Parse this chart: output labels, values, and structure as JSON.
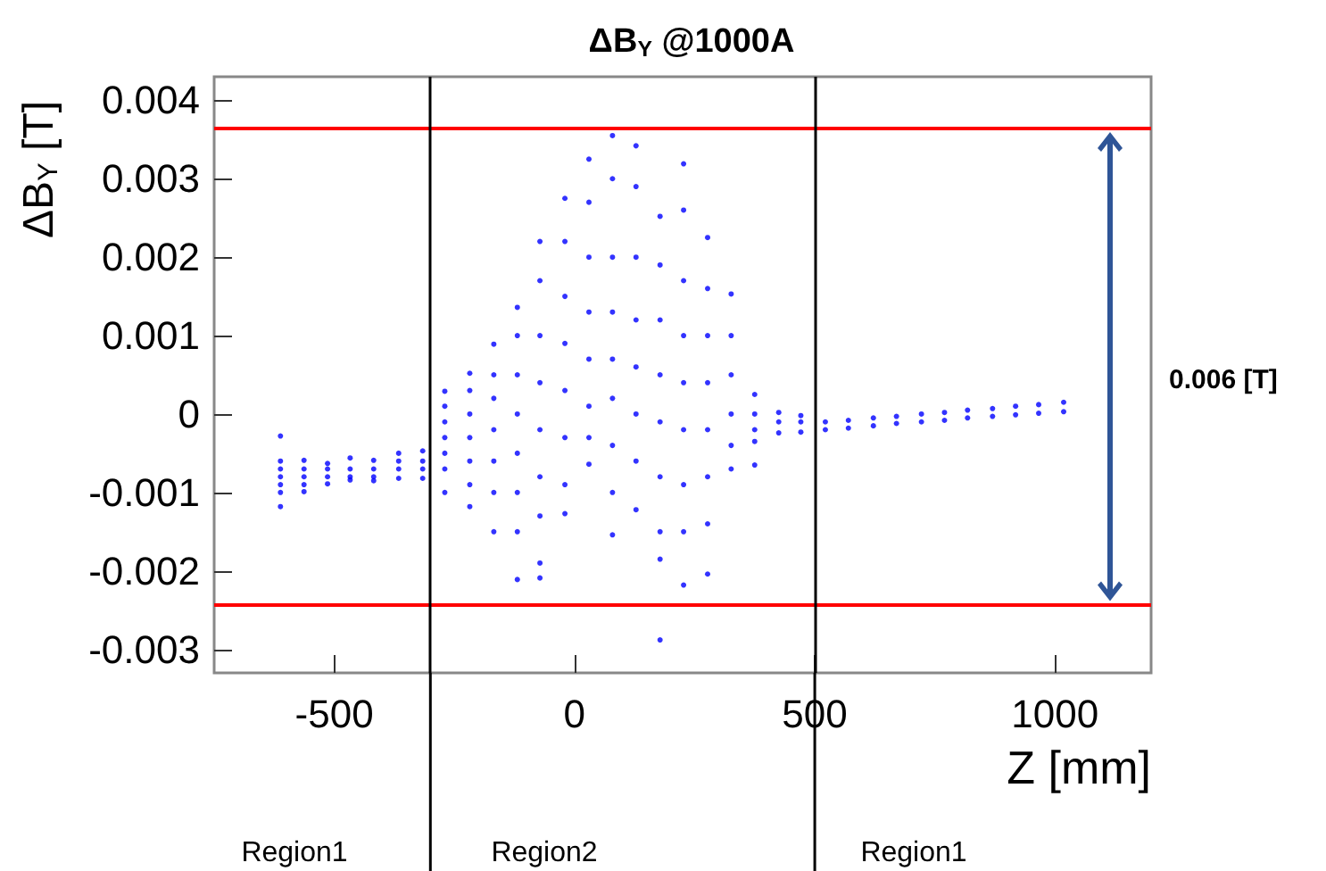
{
  "chart_data": {
    "type": "scatter",
    "title": "ΔB$_{Y}$ @1000A",
    "xlabel": "Z [mm]",
    "ylabel": "ΔB$_{Y}$ [T]",
    "marker": "circle",
    "color": "#0000ff",
    "xlim": [
      -750,
      1200
    ],
    "ylim": [
      -0.0033,
      0.0043
    ],
    "xticks": [
      -500,
      0,
      500,
      1000
    ],
    "yticks": [
      -0.003,
      -0.002,
      -0.001,
      0,
      0.001,
      0.002,
      0.003,
      0.004
    ],
    "x": [
      -612,
      -612,
      -612,
      -612,
      -612,
      -612,
      -612,
      -563,
      -563,
      -563,
      -563,
      -563,
      -514,
      -514,
      -514,
      -514,
      -467,
      -467,
      -467,
      -467,
      -418,
      -418,
      -418,
      -418,
      -366,
      -366,
      -366,
      -366,
      -316,
      -316,
      -316,
      -316,
      -270,
      -270,
      -270,
      -270,
      -270,
      -270,
      -270,
      -218,
      -218,
      -218,
      -218,
      -218,
      -218,
      -218,
      -168,
      -168,
      -168,
      -168,
      -168,
      -168,
      -168,
      -119,
      -119,
      -119,
      -119,
      -119,
      -119,
      -119,
      -119,
      -72,
      -72,
      -72,
      -72,
      -72,
      -72,
      -72,
      -72,
      -72,
      -20,
      -20,
      -20,
      -20,
      -20,
      -20,
      -20,
      -20,
      30,
      30,
      30,
      30,
      30,
      30,
      30,
      30,
      79,
      79,
      79,
      79,
      79,
      79,
      79,
      79,
      79,
      128,
      128,
      128,
      128,
      128,
      128,
      128,
      128,
      178,
      178,
      178,
      178,
      178,
      178,
      178,
      178,
      178,
      227,
      227,
      227,
      227,
      227,
      227,
      227,
      227,
      227,
      277,
      277,
      277,
      277,
      277,
      277,
      277,
      277,
      326,
      326,
      326,
      326,
      326,
      326,
      375,
      375,
      375,
      375,
      375,
      425,
      425,
      425,
      471,
      471,
      471,
      522,
      522,
      570,
      570,
      622,
      622,
      670,
      670,
      722,
      722,
      770,
      770,
      818,
      818,
      870,
      870,
      918,
      918,
      966,
      966,
      1018,
      1018
    ],
    "values": [
      -0.00028,
      -0.0006,
      -0.0007,
      -0.0008,
      -0.0009,
      -0.001,
      -0.00118,
      -0.00059,
      -0.0007,
      -0.0008,
      -0.0009,
      -0.00099,
      -0.00063,
      -0.0007,
      -0.0008,
      -0.00089,
      -0.00056,
      -0.0007,
      -0.0008,
      -0.00084,
      -0.00059,
      -0.0007,
      -0.0008,
      -0.00085,
      -0.0005,
      -0.0006,
      -0.0007,
      -0.00082,
      -0.00047,
      -0.0006,
      -0.0007,
      -0.00082,
      0.00029,
      0.0001,
      -0.0001,
      -0.0003,
      -0.0005,
      -0.0007,
      -0.001,
      0.00052,
      0.0003,
      0,
      -0.0003,
      -0.0006,
      -0.0009,
      -0.00118,
      0.00089,
      0.0005,
      0.0002,
      -0.0002,
      -0.0006,
      -0.001,
      -0.0015,
      0.00136,
      0.001,
      0.0005,
      0,
      -0.0005,
      -0.001,
      -0.0015,
      -0.00211,
      0.0022,
      0.0017,
      0.001,
      0.0004,
      -0.0002,
      -0.0008,
      -0.0013,
      -0.0019,
      -0.00209,
      0.00275,
      0.0022,
      0.0015,
      0.0009,
      0.0003,
      -0.0003,
      -0.0009,
      -0.00127,
      0.00325,
      0.0027,
      0.002,
      0.0013,
      0.0007,
      0.0001,
      -0.0003,
      -0.00064,
      0.00355,
      0.003,
      0.002,
      0.0013,
      0.0007,
      0.0002,
      -0.0004,
      -0.001,
      -0.00154,
      0.00342,
      0.0029,
      0.002,
      0.0012,
      0.0006,
      0,
      -0.0006,
      -0.00122,
      0.00252,
      0.0019,
      0.0012,
      0.0005,
      -0.0001,
      -0.0008,
      -0.0015,
      -0.00185,
      -0.00288,
      0.00319,
      0.0026,
      0.0017,
      0.001,
      0.0004,
      -0.0002,
      -0.0009,
      -0.0015,
      -0.00218,
      0.00225,
      0.0016,
      0.001,
      0.0004,
      -0.0002,
      -0.0008,
      -0.0014,
      -0.00204,
      0.00153,
      0.001,
      0.0005,
      0,
      -0.0004,
      -0.0007,
      0.00025,
      0,
      -0.0002,
      -0.00035,
      -0.00065,
      2e-05,
      -0.0001,
      -0.00024,
      -2e-05,
      -0.0001,
      -0.00023,
      -0.0001,
      -0.0002,
      -8e-05,
      -0.00018,
      -5e-05,
      -0.00015,
      -3e-05,
      -0.00012,
      0,
      -0.0001,
      2e-05,
      -8e-05,
      5e-05,
      -5e-05,
      7e-05,
      -3e-05,
      0.0001,
      -1e-05,
      0.00012,
      1e-05,
      0.00015,
      3e-05
    ],
    "ref_lines": [
      {
        "axis": "y",
        "value": 0.00364,
        "color": "#ff0000"
      },
      {
        "axis": "y",
        "value": -0.00243,
        "color": "#ff0000"
      },
      {
        "axis": "x",
        "value": -300,
        "color": "#000000"
      },
      {
        "axis": "x",
        "value": 500,
        "color": "#000000"
      }
    ],
    "annotations": [
      "0.006 [T]",
      "Region1",
      "Region2",
      "Region1"
    ]
  }
}
